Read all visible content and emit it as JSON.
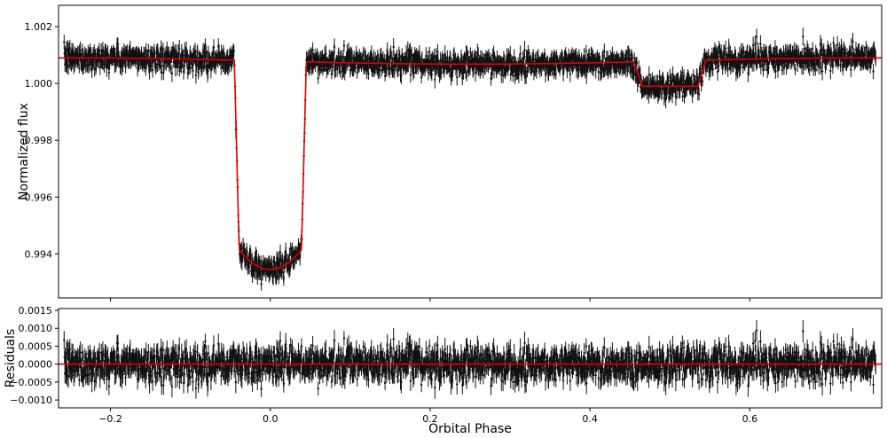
{
  "chart_data": [
    {
      "type": "scatter",
      "panel": "light-curve",
      "ylabel": "Normalized flux",
      "xlim": [
        -0.265,
        0.765
      ],
      "ylim": [
        0.99245,
        1.00275
      ],
      "xticks": [
        -0.2,
        0.0,
        0.2,
        0.4,
        0.6
      ],
      "yticks": [
        0.994,
        0.996,
        0.998,
        1.0,
        1.002
      ],
      "ytick_labels": [
        "0.994",
        "0.996",
        "0.998",
        "1.000",
        "1.002"
      ],
      "series": [
        {
          "kind": "data-with-errorbars",
          "color": "#000000",
          "n_points": 2100,
          "typical_yerr": 0.00025,
          "scatter": 0.0002
        },
        {
          "kind": "model-line",
          "color": "#e00000",
          "baseline": 1.0008,
          "transit": {
            "center": 0.0,
            "half_width": 0.045,
            "ingress": 0.006,
            "depth_min": 0.99345
          },
          "eclipse": {
            "center": 0.5,
            "half_width": 0.045,
            "level": 0.9999
          }
        }
      ]
    },
    {
      "type": "scatter",
      "panel": "residuals",
      "xlabel": "Orbital Phase",
      "ylabel": "Residuals",
      "xlim": [
        -0.265,
        0.765
      ],
      "ylim": [
        -0.00122,
        0.00155
      ],
      "xticks": [
        -0.2,
        0.0,
        0.2,
        0.4,
        0.6
      ],
      "xtick_labels": [
        "−0.2",
        "0.0",
        "0.2",
        "0.4",
        "0.6"
      ],
      "yticks": [
        -0.001,
        -0.0005,
        0.0,
        0.0005,
        0.001,
        0.0015
      ],
      "ytick_labels": [
        "−0.0010",
        "−0.0005",
        "0.0000",
        "0.0005",
        "0.0010",
        "0.0015"
      ],
      "series": [
        {
          "kind": "data-with-errorbars",
          "color": "#000000",
          "scatter": 0.0003
        },
        {
          "kind": "zero-line",
          "color": "#e00000",
          "value": 0.0
        }
      ]
    }
  ]
}
